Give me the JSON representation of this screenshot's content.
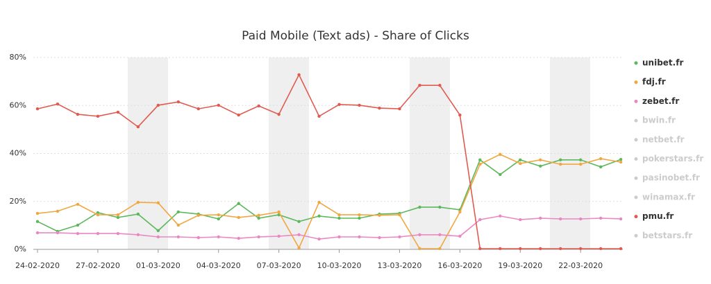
{
  "chart_data": {
    "type": "line",
    "title": "Paid Mobile (Text ads) - Share of Clicks",
    "categories": [
      "24-02-2020",
      null,
      null,
      "27-02-2020",
      null,
      null,
      "01-03-2020",
      null,
      null,
      "04-03-2020",
      null,
      null,
      "07-03-2020",
      null,
      null,
      "10-03-2020",
      null,
      null,
      "13-03-2020",
      null,
      null,
      "16-03-2020",
      null,
      null,
      "19-03-2020",
      null,
      null,
      "22-03-2020",
      null,
      null
    ],
    "ylim": [
      0,
      80
    ],
    "yticks": [
      {
        "value": 0,
        "label": "0%"
      },
      {
        "value": 20,
        "label": "20%"
      },
      {
        "value": 40,
        "label": "40%"
      },
      {
        "value": 60,
        "label": "60%"
      },
      {
        "value": 80,
        "label": "80%"
      }
    ],
    "grid": true,
    "legend": "right",
    "series": [
      {
        "name": "unibet.fr",
        "color": "#5cb85c",
        "visible": true,
        "values": [
          11.6,
          7.5,
          10.1,
          15.3,
          13.3,
          14.7,
          7.8,
          15.6,
          14.7,
          12.7,
          19.1,
          13.0,
          14.4,
          11.6,
          13.9,
          13.0,
          13.0,
          14.7,
          15.0,
          17.6,
          17.6,
          16.5,
          37.3,
          31.2,
          37.3,
          34.7,
          37.3,
          37.3,
          34.4,
          37.5
        ]
      },
      {
        "name": "fdj.fr",
        "color": "#f0a742",
        "visible": true,
        "values": [
          15.0,
          15.9,
          18.8,
          14.4,
          14.4,
          19.6,
          19.4,
          10.1,
          14.2,
          14.4,
          13.3,
          14.2,
          15.6,
          0.6,
          19.6,
          14.4,
          14.4,
          14.2,
          14.4,
          0.3,
          0.3,
          15.6,
          35.5,
          39.6,
          35.8,
          37.3,
          35.5,
          35.5,
          37.8,
          36.4
        ]
      },
      {
        "name": "zebet.fr",
        "color": "#e987c2",
        "visible": true,
        "values": [
          6.9,
          6.9,
          6.6,
          6.6,
          6.6,
          6.1,
          5.2,
          5.2,
          4.9,
          5.2,
          4.6,
          5.2,
          5.5,
          6.1,
          4.3,
          5.2,
          5.2,
          4.9,
          5.2,
          6.1,
          6.1,
          5.5,
          12.4,
          13.9,
          12.4,
          13.0,
          12.7,
          12.7,
          13.0,
          12.7
        ]
      },
      {
        "name": "bwin.fr",
        "visible": false
      },
      {
        "name": "netbet.fr",
        "visible": false
      },
      {
        "name": "pokerstars.fr",
        "visible": false
      },
      {
        "name": "pasinobet.fr",
        "visible": false
      },
      {
        "name": "winamax.fr",
        "visible": false
      },
      {
        "name": "pmu.fr",
        "color": "#e05a4f",
        "visible": true,
        "values": [
          58.6,
          60.6,
          56.3,
          55.5,
          57.2,
          51.1,
          60.1,
          61.5,
          58.6,
          60.1,
          56.0,
          59.8,
          56.3,
          72.8,
          55.5,
          60.4,
          60.1,
          58.9,
          58.6,
          68.4,
          68.4,
          56.0,
          0.3,
          0.3,
          0.3,
          0.3,
          0.3,
          0.3,
          0.3,
          0.3
        ]
      },
      {
        "name": "betstars.fr",
        "visible": false
      }
    ]
  }
}
